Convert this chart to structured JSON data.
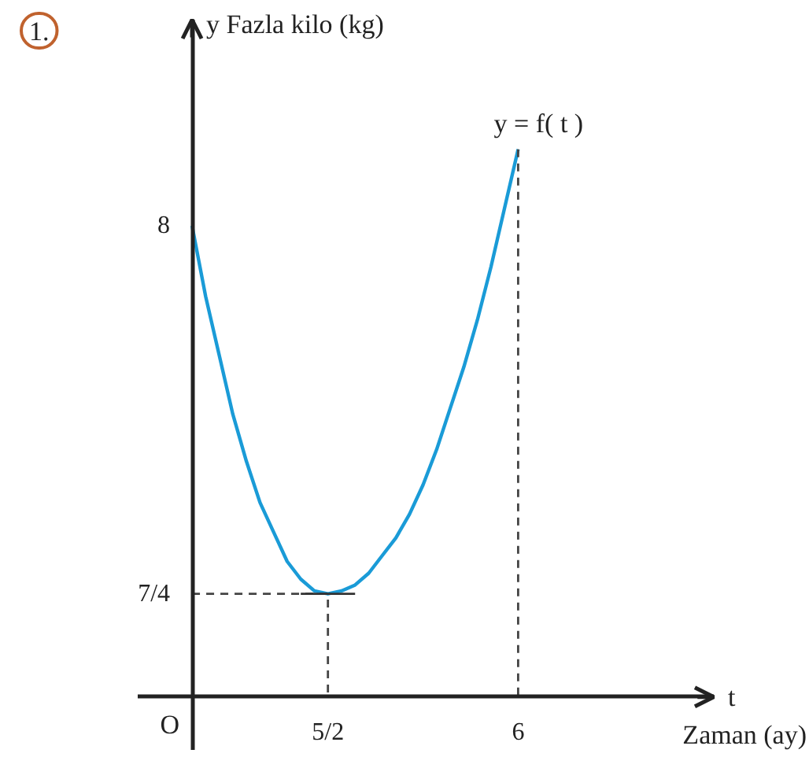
{
  "chart_data": {
    "type": "line",
    "title": "1.",
    "xlabel": "t",
    "ylabel": "y Fazla kilo (kg)",
    "annotations": [
      "O",
      "Zaman (ay)"
    ],
    "xlim": [
      -1,
      9.6
    ],
    "ylim": [
      -0.9,
      11.5
    ],
    "xticks": [
      {
        "value": 2.5,
        "label": "5/2"
      },
      6
    ],
    "yticks": [
      {
        "value": 1.75,
        "label": "7/4"
      },
      8
    ],
    "grid": false,
    "marker": "none",
    "series": [
      {
        "name": "y = f( t )",
        "color": "#1a9bd7",
        "line_style": "solid",
        "x": [
          0,
          0.25,
          0.5,
          0.75,
          1,
          1.25,
          1.5,
          1.75,
          2,
          2.25,
          2.5,
          2.75,
          3,
          3.25,
          3.5,
          3.75,
          4,
          4.25,
          4.5,
          4.75,
          5,
          5.25,
          5.5,
          5.75,
          6
        ],
        "values": [
          8,
          6.8,
          5.8,
          4.8,
          4.0,
          3.3,
          2.8,
          2.3,
          2.0,
          1.8,
          1.75,
          1.8,
          1.9,
          2.1,
          2.4,
          2.7,
          3.1,
          3.6,
          4.2,
          4.9,
          5.6,
          6.4,
          7.3,
          8.3,
          9.3
        ]
      },
      {
        "color": "#444444",
        "line_style": "dashed",
        "x": [
          0,
          2.5,
          2.5
        ],
        "values": [
          1.75,
          1.75,
          0
        ]
      },
      {
        "color": "#444444",
        "line_style": "dashed",
        "x": [
          6,
          6
        ],
        "values": [
          9.3,
          0
        ]
      },
      {
        "color": "#333333",
        "line_style": "solid",
        "x": [
          2,
          3
        ],
        "values": [
          1.75,
          1.75
        ]
      }
    ]
  }
}
